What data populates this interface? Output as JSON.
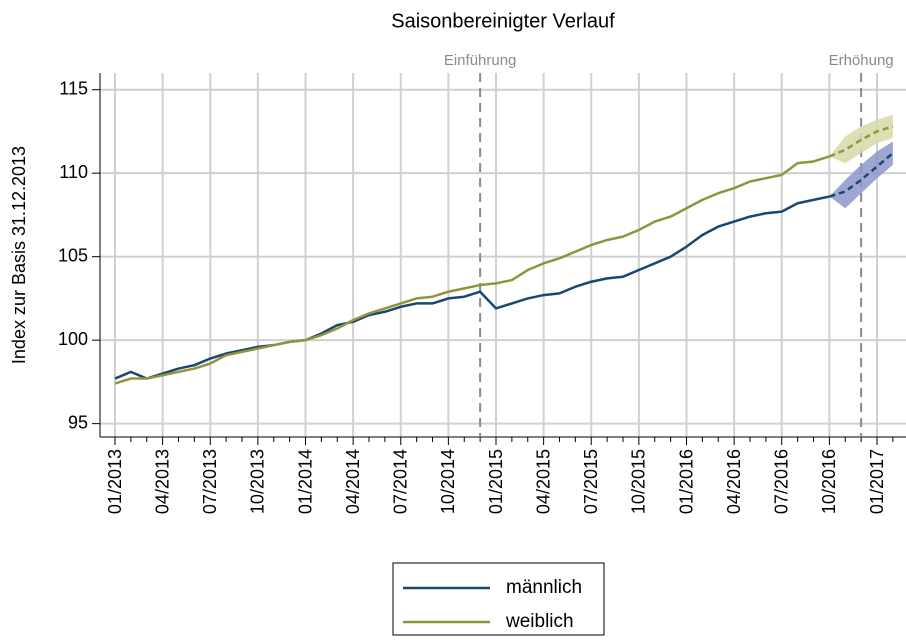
{
  "chart_data": {
    "type": "line",
    "title": "Saisonbereinigter Verlauf",
    "y_label": "Index zur Basis 31.12.2013",
    "categories": [
      "01/2013",
      null,
      null,
      "04/2013",
      null,
      null,
      "07/2013",
      null,
      null,
      "10/2013",
      null,
      null,
      "01/2014",
      null,
      null,
      "04/2014",
      null,
      null,
      "07/2014",
      null,
      null,
      "10/2014",
      null,
      null,
      "01/2015",
      null,
      null,
      "04/2015",
      null,
      null,
      "07/2015",
      null,
      null,
      "10/2015",
      null,
      null,
      "01/2016",
      null,
      null,
      "04/2016",
      null,
      null,
      "07/2016",
      null,
      null,
      "10/2016",
      null,
      null,
      "01/2017",
      null
    ],
    "series": [
      {
        "name": "männlich",
        "color": "#1a476f",
        "values": [
          97.7,
          98.1,
          97.7,
          98.0,
          98.3,
          98.5,
          98.9,
          99.2,
          99.4,
          99.6,
          99.7,
          99.9,
          100.0,
          100.4,
          100.9,
          101.1,
          101.5,
          101.7,
          102.0,
          102.2,
          102.2,
          102.5,
          102.6,
          102.9,
          101.9,
          102.2,
          102.5,
          102.7,
          102.8,
          103.2,
          103.5,
          103.7,
          103.8,
          104.2,
          104.6,
          105.0,
          105.6,
          106.3,
          106.8,
          107.1,
          107.4,
          107.6,
          107.7,
          108.2,
          108.4,
          108.6,
          null,
          null,
          null,
          null
        ]
      },
      {
        "name": "weiblich",
        "color": "#90953b",
        "values": [
          97.4,
          97.7,
          97.7,
          97.9,
          98.1,
          98.3,
          98.6,
          99.1,
          99.3,
          99.5,
          99.7,
          99.9,
          100.0,
          100.3,
          100.7,
          101.2,
          101.6,
          101.9,
          102.2,
          102.5,
          102.6,
          102.9,
          103.1,
          103.3,
          103.4,
          103.6,
          104.2,
          104.6,
          104.9,
          105.3,
          105.7,
          106.0,
          106.2,
          106.6,
          107.1,
          107.4,
          107.9,
          108.4,
          108.8,
          109.1,
          109.5,
          109.7,
          109.9,
          110.6,
          110.7,
          111.0,
          null,
          null,
          null,
          null
        ]
      }
    ],
    "forecast": [
      {
        "color": "#1a476f",
        "band_color": "#8d98c9",
        "start": 45,
        "values": [
          108.6,
          108.9,
          109.6,
          110.4,
          111.2
        ],
        "lower": [
          108.6,
          107.9,
          108.8,
          109.7,
          110.5
        ],
        "upper": [
          108.6,
          109.6,
          110.5,
          111.3,
          111.9
        ]
      },
      {
        "color": "#90953b",
        "band_color": "#d6d8a6",
        "start": 45,
        "values": [
          111.0,
          111.4,
          112.0,
          112.5,
          112.8
        ],
        "lower": [
          111.0,
          110.6,
          111.2,
          111.8,
          112.1
        ],
        "upper": [
          111.0,
          112.2,
          112.8,
          113.2,
          113.5
        ]
      }
    ],
    "annotations": [
      {
        "text": "Einführung",
        "x": 23
      },
      {
        "text": "Erhöhung",
        "x": 47
      }
    ],
    "ylim": [
      94.2,
      116
    ],
    "yticks": [
      95,
      100,
      105,
      110,
      115
    ],
    "grid": true,
    "legend": "bottom"
  }
}
